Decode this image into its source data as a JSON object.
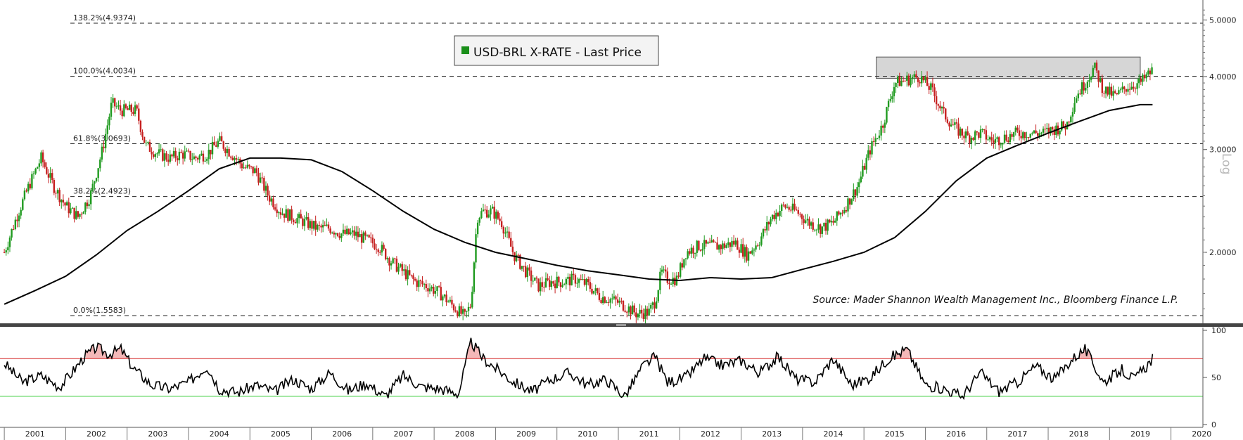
{
  "chart_data": {
    "type": "candlestick",
    "title": "USD-BRL X-RATE - Last Price",
    "legend": [
      {
        "name": "USD-BRL X-RATE - Last Price",
        "color": "#1a8f1a"
      }
    ],
    "legend_placement": "top-center",
    "source": "Source: Mader Shannon Wealth Management Inc., Bloomberg Finance L.P.",
    "y_scale": "log",
    "y_scale_label": "Log",
    "ylim": [
      1.52,
      5.35
    ],
    "y_ticks": [
      {
        "value": 2.0,
        "label": "2.0000"
      },
      {
        "value": 3.0,
        "label": "3.0000"
      },
      {
        "value": 4.0,
        "label": "4.0000"
      },
      {
        "value": 5.0,
        "label": "5.0000"
      }
    ],
    "x_ticks": [
      "2001",
      "2002",
      "2003",
      "2004",
      "2005",
      "2006",
      "2007",
      "2008",
      "2009",
      "2010",
      "2011",
      "2012",
      "2013",
      "2014",
      "2015",
      "2016",
      "2017",
      "2018",
      "2019",
      "2020"
    ],
    "xlim": [
      2000.9,
      2020.5
    ],
    "fibonacci_levels": [
      {
        "level": "138.2%",
        "value": 4.9374,
        "label": "138.2%(4.9374)"
      },
      {
        "level": "100.0%",
        "value": 4.0034,
        "label": "100.0%(4.0034)"
      },
      {
        "level": "61.8%",
        "value": 3.0693,
        "label": "61.8%(3.0693)"
      },
      {
        "level": "38.2%",
        "value": 2.4923,
        "label": "38.2%(2.4923)"
      },
      {
        "level": "0.0%",
        "value": 1.5583,
        "label": "0.0%(1.5583)"
      }
    ],
    "resistance_zone": {
      "x": [
        2015.2,
        2019.5
      ],
      "y": [
        3.97,
        4.32
      ]
    },
    "price_series": {
      "name": "USD-BRL X-RATE - Last Price",
      "x": [
        2001.0,
        2001.2,
        2001.4,
        2001.6,
        2001.8,
        2002.0,
        2002.2,
        2002.4,
        2002.6,
        2002.75,
        2002.9,
        2003.0,
        2003.15,
        2003.3,
        2003.5,
        2003.7,
        2003.9,
        2004.1,
        2004.3,
        2004.5,
        2004.7,
        2004.9,
        2005.1,
        2005.3,
        2005.5,
        2005.7,
        2005.9,
        2006.1,
        2006.3,
        2006.5,
        2006.7,
        2006.9,
        2007.1,
        2007.3,
        2007.5,
        2007.7,
        2007.9,
        2008.1,
        2008.3,
        2008.5,
        2008.6,
        2008.7,
        2008.8,
        2008.95,
        2009.1,
        2009.3,
        2009.5,
        2009.7,
        2009.9,
        2010.1,
        2010.3,
        2010.5,
        2010.7,
        2010.9,
        2011.1,
        2011.3,
        2011.5,
        2011.6,
        2011.7,
        2011.8,
        2011.95,
        2012.1,
        2012.3,
        2012.5,
        2012.7,
        2012.9,
        2013.1,
        2013.3,
        2013.5,
        2013.7,
        2013.9,
        2014.1,
        2014.3,
        2014.5,
        2014.7,
        2014.9,
        2015.1,
        2015.3,
        2015.5,
        2015.7,
        2015.9,
        2016.1,
        2016.3,
        2016.5,
        2016.7,
        2016.9,
        2017.1,
        2017.3,
        2017.5,
        2017.7,
        2017.9,
        2018.1,
        2018.3,
        2018.45,
        2018.6,
        2018.75,
        2018.9,
        2019.1,
        2019.3,
        2019.5,
        2019.7
      ],
      "y": [
        2.0,
        2.3,
        2.6,
        2.9,
        2.6,
        2.4,
        2.3,
        2.5,
        3.0,
        3.6,
        3.5,
        3.5,
        3.5,
        3.05,
        2.95,
        2.9,
        2.95,
        2.9,
        2.95,
        3.1,
        2.95,
        2.8,
        2.75,
        2.5,
        2.35,
        2.3,
        2.25,
        2.2,
        2.2,
        2.15,
        2.15,
        2.1,
        2.05,
        1.93,
        1.85,
        1.78,
        1.75,
        1.7,
        1.62,
        1.55,
        1.63,
        2.3,
        2.35,
        2.35,
        2.25,
        1.98,
        1.85,
        1.75,
        1.78,
        1.78,
        1.8,
        1.76,
        1.68,
        1.66,
        1.62,
        1.57,
        1.58,
        1.65,
        1.85,
        1.8,
        1.8,
        2.0,
        2.05,
        2.05,
        2.05,
        2.08,
        1.98,
        2.1,
        2.3,
        2.4,
        2.35,
        2.25,
        2.2,
        2.25,
        2.4,
        2.6,
        3.0,
        3.3,
        3.9,
        3.95,
        4.0,
        3.8,
        3.45,
        3.25,
        3.15,
        3.2,
        3.1,
        3.15,
        3.2,
        3.2,
        3.2,
        3.25,
        3.3,
        3.7,
        3.9,
        4.15,
        3.8,
        3.7,
        3.85,
        3.9,
        4.1
      ]
    },
    "moving_average": {
      "x": [
        2001.0,
        2001.5,
        2002.0,
        2002.5,
        2003.0,
        2003.5,
        2004.0,
        2004.5,
        2005.0,
        2005.5,
        2006.0,
        2006.5,
        2007.0,
        2007.5,
        2008.0,
        2008.5,
        2009.0,
        2009.5,
        2010.0,
        2010.5,
        2011.0,
        2011.5,
        2012.0,
        2012.5,
        2013.0,
        2013.5,
        2014.0,
        2014.5,
        2015.0,
        2015.5,
        2016.0,
        2016.5,
        2017.0,
        2017.5,
        2018.0,
        2018.5,
        2019.0,
        2019.5,
        2019.7
      ],
      "y": [
        1.63,
        1.72,
        1.82,
        1.98,
        2.18,
        2.35,
        2.55,
        2.78,
        2.9,
        2.9,
        2.88,
        2.75,
        2.55,
        2.35,
        2.19,
        2.08,
        2.0,
        1.95,
        1.9,
        1.86,
        1.83,
        1.8,
        1.79,
        1.81,
        1.8,
        1.81,
        1.87,
        1.93,
        2.0,
        2.12,
        2.35,
        2.65,
        2.9,
        3.05,
        3.2,
        3.35,
        3.5,
        3.58,
        3.58
      ]
    },
    "rsi": {
      "ylim": [
        0,
        100
      ],
      "y_ticks": [
        0,
        50,
        100
      ],
      "overbought": 70,
      "oversold": 30,
      "x": [
        2001.0,
        2001.3,
        2001.6,
        2001.9,
        2002.1,
        2002.3,
        2002.5,
        2002.7,
        2002.9,
        2003.1,
        2003.4,
        2003.7,
        2004.0,
        2004.3,
        2004.5,
        2004.8,
        2005.1,
        2005.4,
        2005.7,
        2006.0,
        2006.3,
        2006.6,
        2006.9,
        2007.2,
        2007.5,
        2007.8,
        2008.1,
        2008.4,
        2008.6,
        2008.8,
        2009.0,
        2009.3,
        2009.6,
        2009.9,
        2010.2,
        2010.5,
        2010.8,
        2011.1,
        2011.4,
        2011.6,
        2011.8,
        2012.1,
        2012.4,
        2012.7,
        2013.0,
        2013.3,
        2013.6,
        2013.9,
        2014.2,
        2014.5,
        2014.8,
        2015.1,
        2015.4,
        2015.7,
        2016.0,
        2016.3,
        2016.6,
        2016.9,
        2017.2,
        2017.5,
        2017.8,
        2018.1,
        2018.4,
        2018.6,
        2018.9,
        2019.2,
        2019.4,
        2019.6,
        2019.7
      ],
      "y": [
        65,
        45,
        52,
        40,
        55,
        72,
        82,
        75,
        80,
        60,
        42,
        38,
        45,
        62,
        38,
        34,
        42,
        35,
        48,
        38,
        55,
        36,
        44,
        30,
        52,
        40,
        38,
        33,
        88,
        70,
        60,
        45,
        35,
        48,
        55,
        42,
        48,
        30,
        62,
        72,
        45,
        50,
        70,
        63,
        68,
        55,
        72,
        48,
        45,
        70,
        42,
        50,
        70,
        80,
        42,
        38,
        30,
        55,
        35,
        45,
        62,
        48,
        70,
        80,
        45,
        58,
        48,
        62,
        70
      ]
    },
    "annotations": [
      "Source: Mader Shannon Wealth Management Inc., Bloomberg Finance L.P."
    ]
  },
  "colors": {
    "up": "#1f9a1f",
    "down": "#c62020",
    "ma_line": "#000000",
    "fib_line": "#222222",
    "overbought_line": "#d32020",
    "oversold_line": "#33cc33",
    "zone_fill": "#d6d6d6",
    "divider": "#444444"
  }
}
